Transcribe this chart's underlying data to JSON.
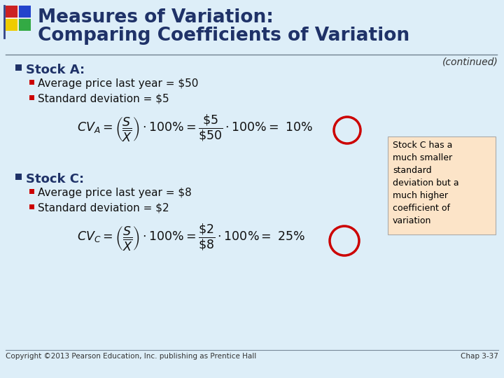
{
  "background_color": "#ddeef8",
  "title_line1": "Measures of Variation:",
  "title_line2": "Comparing Coefficients of Variation",
  "title_color": "#1f3268",
  "continued_text": "(continued)",
  "bullet_color_main": "#1f3268",
  "bullet_color_sub": "#cc0000",
  "stock_a_label": "Stock A:",
  "stock_a_bullet1": "Average price last year = $50",
  "stock_a_bullet2": "Standard deviation = $5",
  "stock_c_label": "Stock C:",
  "stock_c_bullet1": "Average price last year = $8",
  "stock_c_bullet2": "Standard deviation = $2",
  "annotation_text": "Stock C has a\nmuch smaller\nstandard\ndeviation but a\nmuch higher\ncoefficient of\nvariation",
  "annotation_bg": "#fce4c8",
  "annotation_border": "#aaaaaa",
  "circle_color": "#cc0000",
  "copyright_text": "Copyright ©2013 Pearson Education, Inc. publishing as Prentice Hall",
  "chap_text": "Chap 3-37",
  "logo_red": "#cc2222",
  "logo_blue": "#2244cc",
  "logo_green": "#33aa44",
  "logo_yellow": "#eecc00",
  "header_line_color": "#7799bb",
  "text_color": "#1f3268",
  "formula_color": "#111111"
}
